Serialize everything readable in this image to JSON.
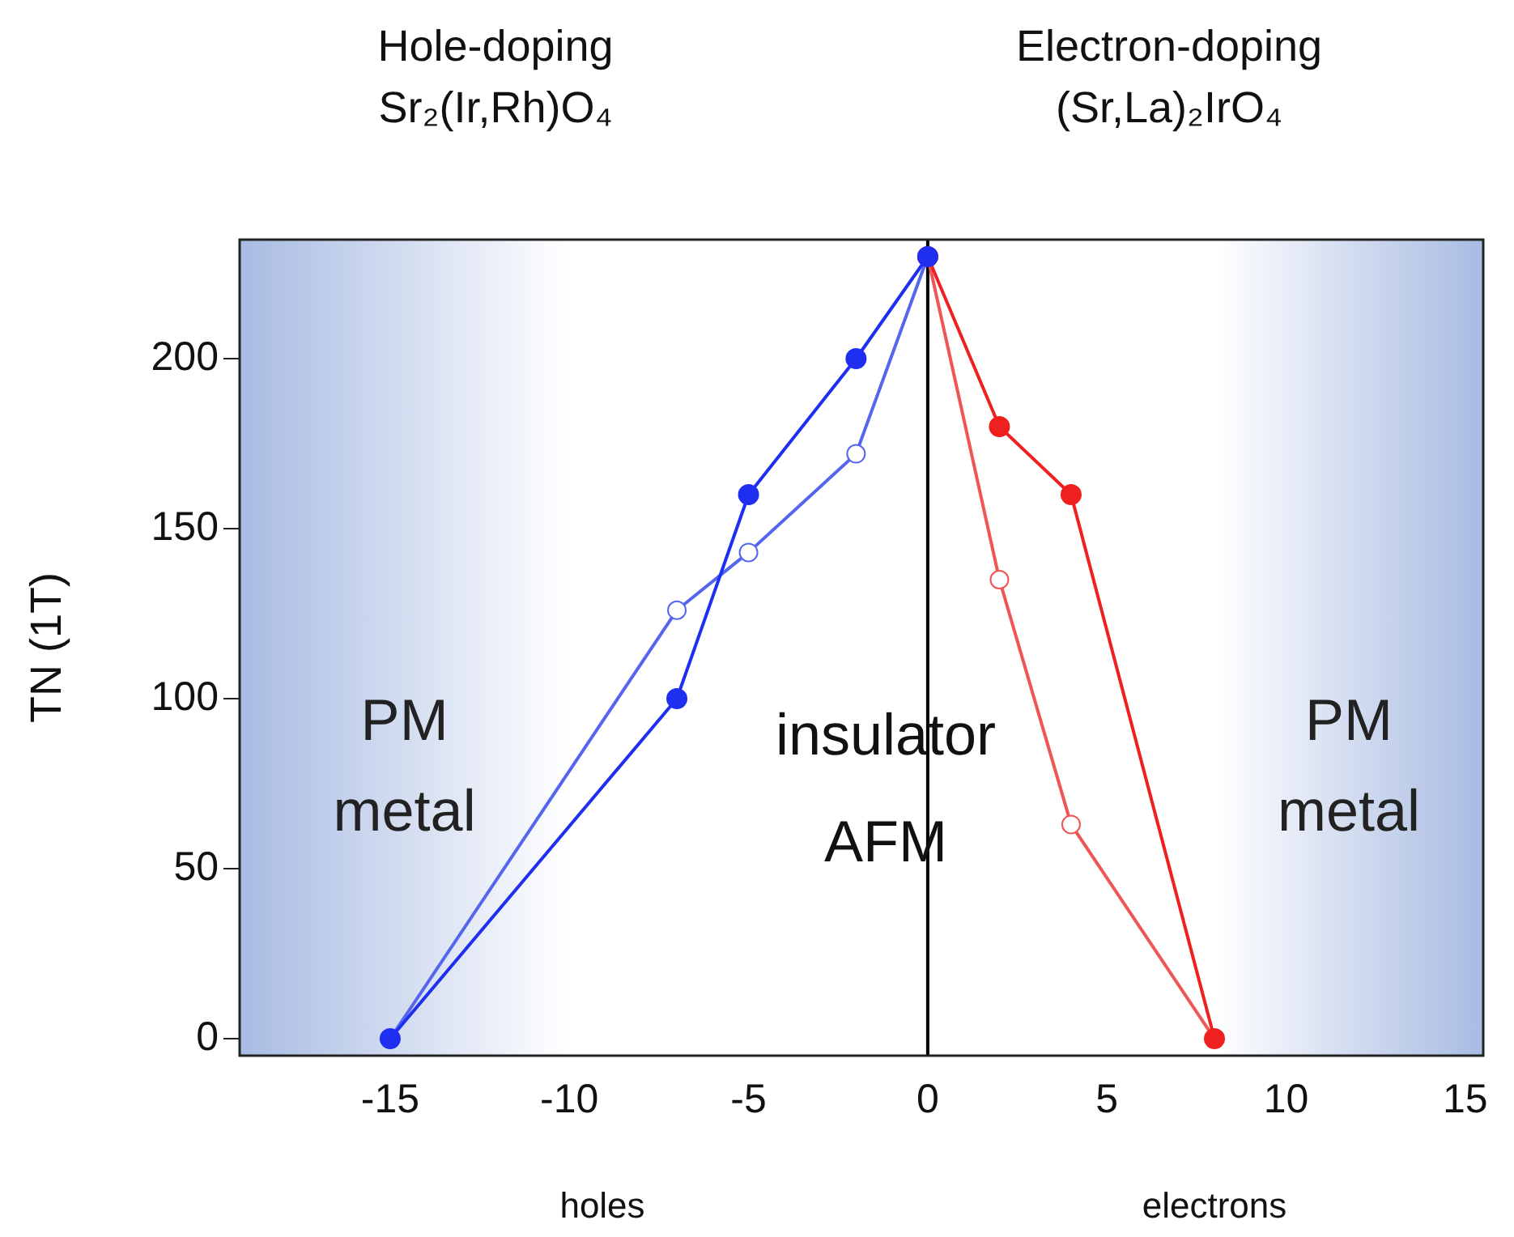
{
  "chart_data": {
    "type": "line",
    "ylabel": "TN (1T)",
    "series": [
      {
        "color": "#1f2ff0",
        "marker": "circle",
        "x": [
          -15,
          -7,
          -5,
          -2,
          0
        ],
        "values": [
          0,
          100,
          160,
          200,
          230
        ]
      },
      {
        "color": "#5566ee",
        "marker": "circle-open",
        "x": [
          -15,
          -7,
          -5,
          -2,
          0
        ],
        "values": [
          0,
          126,
          143,
          172,
          230
        ]
      },
      {
        "color": "#ee2020",
        "marker": "circle",
        "x": [
          0,
          2,
          4,
          8
        ],
        "values": [
          230,
          180,
          160,
          0
        ]
      },
      {
        "color": "#f05555",
        "marker": "circle-open",
        "x": [
          0,
          2,
          4,
          8
        ],
        "values": [
          230,
          135,
          63,
          0
        ]
      }
    ],
    "xlim": [
      -19.2,
      15.5
    ],
    "xticks": [
      -15,
      -10,
      -5,
      0,
      5,
      10,
      15
    ],
    "ylim": [
      -5,
      235
    ],
    "yticks": [
      0,
      50,
      100,
      150,
      200
    ],
    "grid": false,
    "legend": false,
    "ref_lines": [
      {
        "axis": "x",
        "value": 0,
        "color": "#000000"
      }
    ],
    "bands": [
      {
        "axis": "x",
        "from": -19.2,
        "to": -10,
        "label": "PM metal",
        "color": "#a8bbe2"
      },
      {
        "axis": "x",
        "from": 8,
        "to": 15.5,
        "label": "PM metal",
        "color": "#a8bbe2"
      }
    ],
    "annotations": [
      "Hole-doping\nSr₂(Ir,Rh)O₄",
      "Electron-doping\n(Sr,La)₂IrO₄",
      "insulator",
      "AFM",
      "holes",
      "electrons"
    ]
  }
}
